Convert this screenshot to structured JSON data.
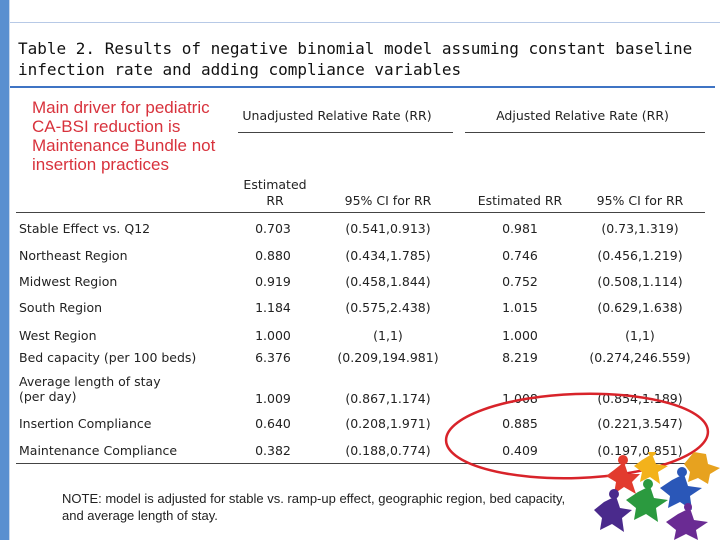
{
  "title": "Table 2. Results of negative binomial model assuming constant baseline infection rate and adding compliance variables",
  "callout": "Main driver for pediatric CA-BSI reduction is Maintenance Bundle not insertion practices",
  "table": {
    "group_headers": [
      "Unadjusted Relative Rate (RR)",
      "Adjusted Relative Rate (RR)"
    ],
    "column_headers": [
      "Estimated RR",
      "95% CI for RR",
      "Estimated RR",
      "95% CI for RR"
    ],
    "rows": [
      {
        "label": "Stable Effect vs. Q12",
        "values": [
          "0.703",
          "(0.541,0.913)",
          "0.981",
          "(0.73,1.319)"
        ]
      },
      {
        "label": "Northeast Region",
        "values": [
          "0.880",
          "(0.434,1.785)",
          "0.746",
          "(0.456,1.219)"
        ]
      },
      {
        "label": "Midwest Region",
        "values": [
          "0.919",
          "(0.458,1.844)",
          "0.752",
          "(0.508,1.114)"
        ]
      },
      {
        "label": "South Region",
        "values": [
          "1.184",
          "(0.575,2.438)",
          "1.015",
          "(0.629,1.638)"
        ]
      },
      {
        "label": "West Region",
        "values": [
          "1.000",
          "(1,1)",
          "1.000",
          "(1,1)"
        ]
      },
      {
        "label": "Bed capacity (per 100 beds)",
        "values": [
          "6.376",
          "(0.209,194.981)",
          "8.219",
          "(0.274,246.559)"
        ]
      },
      {
        "label": "Average length of stay (per day)",
        "values": [
          "1.009",
          "(0.867,1.174)",
          "1.008",
          "(0.854,1.189)"
        ]
      },
      {
        "label": "Insertion Compliance",
        "values": [
          "0.640",
          "(0.208,1.971)",
          "0.885",
          "(0.221,3.547)"
        ]
      },
      {
        "label": "Maintenance Compliance",
        "values": [
          "0.382",
          "(0.188,0.774)",
          "0.409",
          "(0.197,0.851)"
        ]
      }
    ]
  },
  "note": "NOTE: model is adjusted for stable vs. ramp-up effect, geographic region, bed capacity, and average length of stay.",
  "colors": {
    "accent_blue": "#3f74c4",
    "callout_red": "#d8323c",
    "highlight_oval": "#d8232a"
  },
  "logo": {
    "icon": "children-figures-logo-icon"
  }
}
